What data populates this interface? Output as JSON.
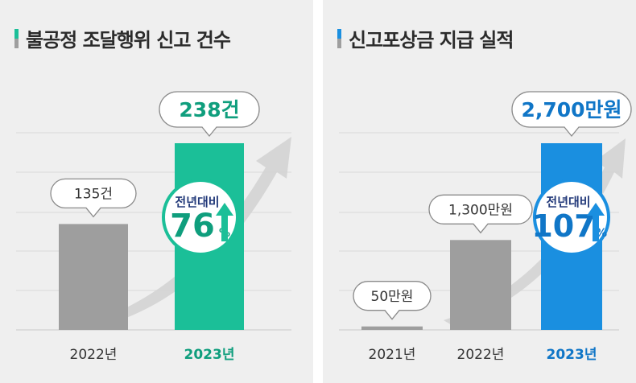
{
  "colors": {
    "panel_bg": "#efefef",
    "gray_bar": "#9e9e9e",
    "teal": "#1bbf98",
    "teal_dark": "#0f9e7d",
    "blue": "#1a8fe0",
    "blue_dark": "#1076c7",
    "navy_text": "#233a7a",
    "grid": "#d9d9d9",
    "arrow": "#d3d3d3"
  },
  "chart_data": [
    {
      "type": "bar",
      "title": "불공정 조달행위 신고 건수",
      "categories": [
        "2022년",
        "2023년"
      ],
      "values": [
        135,
        238
      ],
      "value_labels": [
        "135건",
        "238건"
      ],
      "highlight_index": 1,
      "ylim": [
        0,
        238
      ],
      "badge": {
        "label": "전년대비",
        "value": "76",
        "unit": "%"
      },
      "grid": true
    },
    {
      "type": "bar",
      "title": "신고포상금 지급 실적",
      "categories": [
        "2021년",
        "2022년",
        "2023년"
      ],
      "values": [
        50,
        1300,
        2700
      ],
      "value_labels": [
        "50만원",
        "1,300만원",
        "2,700만원"
      ],
      "highlight_index": 2,
      "ylim": [
        0,
        2700
      ],
      "badge": {
        "label": "전년대비",
        "value": "107",
        "unit": "%"
      },
      "grid": true
    }
  ]
}
